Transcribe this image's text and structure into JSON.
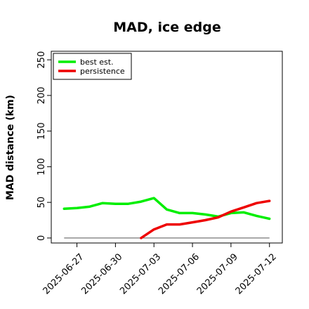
{
  "chart_data": {
    "type": "line",
    "title": "MAD, ice edge",
    "ylabel": "MAD distance (km)",
    "xlabel": "",
    "ylim": [
      -7,
      262
    ],
    "yticks": [
      0,
      50,
      100,
      150,
      200,
      250
    ],
    "xlim": [
      "2025-06-25",
      "2025-07-13"
    ],
    "xticks": [
      "2025-06-27",
      "2025-06-30",
      "2025-07-03",
      "2025-07-06",
      "2025-07-09",
      "2025-07-12"
    ],
    "grid": false,
    "legend_position": "top-left",
    "series": [
      {
        "name": "best est.",
        "color": "#00ee00",
        "x": [
          "2025-06-26",
          "2025-06-27",
          "2025-06-28",
          "2025-06-29",
          "2025-06-30",
          "2025-07-01",
          "2025-07-02",
          "2025-07-03",
          "2025-07-04",
          "2025-07-05",
          "2025-07-06",
          "2025-07-07",
          "2025-07-08",
          "2025-07-09",
          "2025-07-10",
          "2025-07-11",
          "2025-07-12"
        ],
        "values": [
          41,
          42,
          44,
          49,
          48,
          48,
          51,
          56,
          40,
          35,
          35,
          33,
          30,
          35,
          36,
          31,
          27
        ]
      },
      {
        "name": "persistence",
        "color": "#ee0000",
        "x": [
          "2025-07-02",
          "2025-07-03",
          "2025-07-04",
          "2025-07-05",
          "2025-07-06",
          "2025-07-07",
          "2025-07-08",
          "2025-07-09",
          "2025-07-10",
          "2025-07-11",
          "2025-07-12"
        ],
        "values": [
          0,
          12,
          19,
          19,
          22,
          25,
          29,
          37,
          43,
          49,
          52
        ]
      }
    ],
    "baseline": {
      "color": "#777777",
      "value": 0,
      "x": [
        "2025-06-26",
        "2025-07-12"
      ]
    }
  }
}
